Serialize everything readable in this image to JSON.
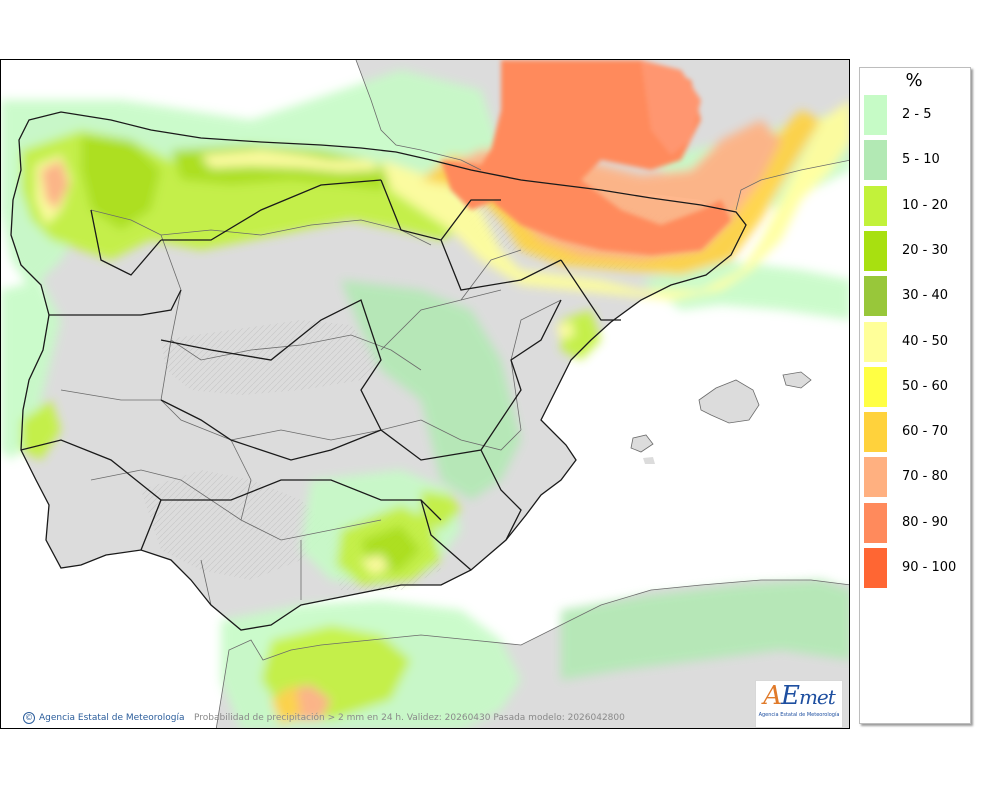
{
  "map": {
    "caption": "Probabilidad de precipitación > 2 mm en 24 h. Validez: 20260430 Pasada modelo: 2026042800",
    "credit": "Agencia Estatal de Meteorología",
    "logo_text": "AEmet",
    "logo_subtext": "Agencia Estatal de Meteorología"
  },
  "legend": {
    "title": "%",
    "items": [
      {
        "label": "2 - 5",
        "color": "#c6fbc6"
      },
      {
        "label": "5 - 10",
        "color": "#b2e9b4"
      },
      {
        "label": "10 - 20",
        "color": "#c2f23a"
      },
      {
        "label": "20 - 30",
        "color": "#a8e010"
      },
      {
        "label": "30 - 40",
        "color": "#98c73a"
      },
      {
        "label": "40 - 50",
        "color": "#ffff99"
      },
      {
        "label": "50 - 60",
        "color": "#ffff44"
      },
      {
        "label": "60 - 70",
        "color": "#ffd23c"
      },
      {
        "label": "70 - 80",
        "color": "#ffb080"
      },
      {
        "label": "80 - 90",
        "color": "#ff8a5c"
      },
      {
        "label": "90 - 100",
        "color": "#ff6633"
      }
    ]
  },
  "colors": {
    "land": "#dcdcdc",
    "sea": "#ffffff",
    "border": "#1a1a1a"
  }
}
